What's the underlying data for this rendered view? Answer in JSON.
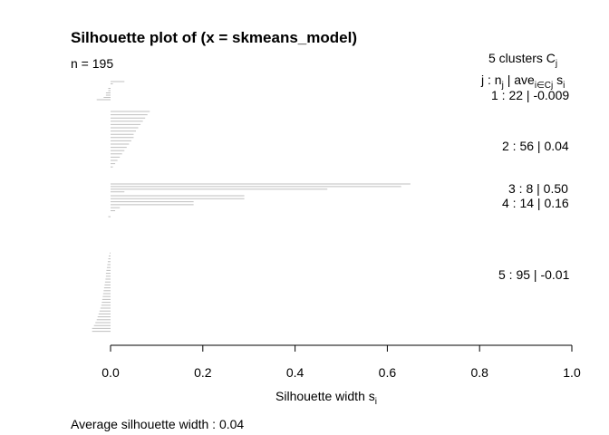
{
  "chart_data": {
    "type": "bar",
    "orientation": "horizontal",
    "title": "Silhouette plot of (x = skmeans_model)",
    "n_label": "n = 195",
    "clusters_label": "5  clusters  C",
    "clusters_sub": "j",
    "legend_header": "j :  n",
    "legend_header_sub": "j",
    "legend_header_mid": " | ave",
    "legend_header_sub2": "i∈Cj",
    "legend_header_end": " s",
    "legend_header_sub3": "i",
    "xlabel": "Silhouette width s",
    "xlabel_sub": "i",
    "xlim": [
      0,
      1
    ],
    "x_ticks": [
      "0.0",
      "0.2",
      "0.4",
      "0.6",
      "0.8",
      "1.0"
    ],
    "bar_color": "#bfbfbf",
    "average_label": "Average silhouette width :  0.04",
    "clusters": [
      {
        "label": "1 :   22  |  -0.009",
        "values": [
          0.03,
          0.005,
          0.0,
          -0.005,
          -0.005,
          -0.01,
          -0.01,
          -0.015,
          -0.03
        ]
      },
      {
        "label": "2 :   56  |  0.04",
        "values": [
          0.085,
          0.08,
          0.075,
          0.07,
          0.065,
          0.06,
          0.055,
          0.05,
          0.05,
          0.045,
          0.04,
          0.035,
          0.03,
          0.025,
          0.02,
          0.015,
          0.01,
          0.005,
          0.0
        ]
      },
      {
        "label": "3 :   8  |  0.50",
        "values": [
          0.65,
          0.63,
          0.47,
          0.03
        ]
      },
      {
        "label": "4 :   14  |  0.16",
        "values": [
          0.29,
          0.29,
          0.18,
          0.18,
          0.02,
          0.01,
          0.0,
          -0.005
        ]
      },
      {
        "label": "5 :   95  |  -0.01",
        "values": [
          0.0,
          -0.002,
          -0.004,
          -0.005,
          -0.006,
          -0.007,
          -0.008,
          -0.009,
          -0.01,
          -0.01,
          -0.011,
          -0.012,
          -0.013,
          -0.014,
          -0.015,
          -0.016,
          -0.017,
          -0.018,
          -0.019,
          -0.02,
          -0.022,
          -0.024,
          -0.026,
          -0.028,
          -0.03,
          -0.033,
          -0.036,
          -0.04,
          -0.04
        ]
      }
    ]
  }
}
